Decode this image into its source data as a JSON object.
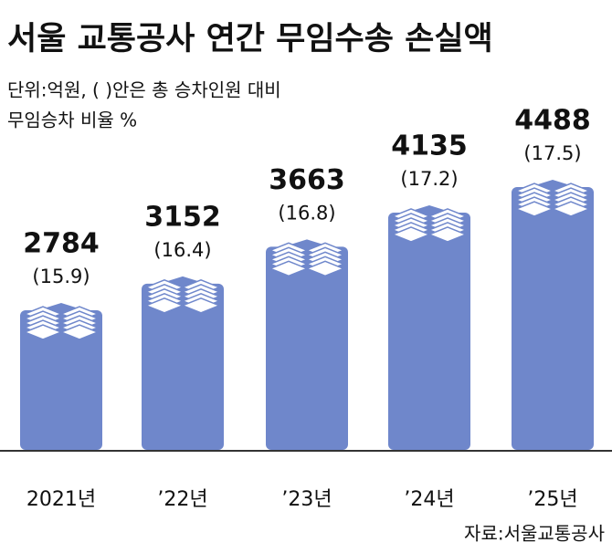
{
  "chart_data": {
    "type": "bar",
    "title": "서울 교통공사 연간 무임수송 손실액",
    "subtitle": [
      "단위:억원, (    )안은 총 승차인원 대비",
      "무임승차 비율 %"
    ],
    "categories": [
      "2021년",
      "’22년",
      "’23년",
      "’24년",
      "’25년"
    ],
    "values": [
      2784,
      3152,
      3663,
      4135,
      4488
    ],
    "ratios": [
      15.9,
      16.4,
      16.8,
      17.2,
      17.5
    ],
    "ratio_labels": [
      "(15.9)",
      "(16.4)",
      "(16.8)",
      "(17.2)",
      "(17.5)"
    ],
    "color": "#6f87cb",
    "source": "자료:서울교통공사"
  }
}
